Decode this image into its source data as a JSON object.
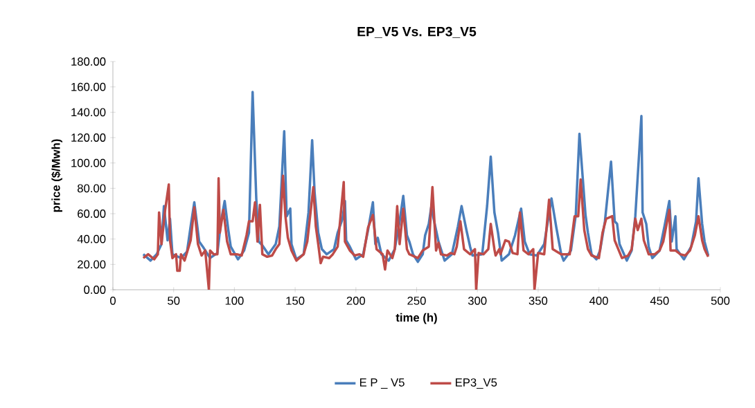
{
  "chart_data": {
    "type": "line",
    "title": "EP_V5 Vs. EP3_V5",
    "xlabel": "time (h)",
    "ylabel": "price ($/Mwh)",
    "xlim": [
      0,
      500
    ],
    "xticks": [
      0,
      50,
      100,
      150,
      200,
      250,
      300,
      350,
      400,
      450,
      500
    ],
    "ylim": [
      0,
      180
    ],
    "yticks": [
      {
        "value": 0,
        "label": "0.00"
      },
      {
        "value": 20,
        "label": "20.00"
      },
      {
        "value": 40,
        "label": "40.00"
      },
      {
        "value": 60,
        "label": "60.00"
      },
      {
        "value": 80,
        "label": "80.00"
      },
      {
        "value": 100,
        "label": "100.00"
      },
      {
        "value": 120,
        "label": "120.00"
      },
      {
        "value": 140,
        "label": "140.00"
      },
      {
        "value": 160,
        "label": "160.00"
      },
      {
        "value": 180,
        "label": "180.00"
      }
    ],
    "grid": false,
    "legend": "bottom",
    "marker": "none",
    "line_style": "solid",
    "series": [
      {
        "name": "E P _ V5",
        "color": "#4a7ebb",
        "x": [
          25,
          31,
          36,
          40,
          42,
          45,
          47,
          49,
          56,
          61,
          64,
          67,
          71,
          74,
          80,
          86,
          89,
          92,
          95,
          97,
          103,
          108,
          112,
          115,
          118,
          120,
          123,
          128,
          134,
          137,
          141,
          143,
          146,
          147,
          151,
          157,
          161,
          164,
          166,
          169,
          172,
          176,
          182,
          185,
          189,
          191,
          192,
          195,
          200,
          206,
          210,
          214,
          216,
          218,
          221,
          227,
          232,
          236,
          239,
          242,
          244,
          247,
          251,
          255,
          257,
          260,
          262,
          268,
          273,
          279,
          284,
          287,
          291,
          294,
          296,
          304,
          308,
          311,
          314,
          317,
          320,
          326,
          331,
          336,
          339,
          343,
          349,
          355,
          361,
          365,
          369,
          371,
          377,
          381,
          384,
          389,
          391,
          394,
          398,
          401,
          405,
          410,
          413,
          415,
          417,
          423,
          427,
          430,
          435,
          436,
          439,
          441,
          444,
          450,
          454,
          458,
          460,
          463,
          464,
          470,
          476,
          480,
          482,
          485,
          487,
          490
        ],
        "values": [
          28,
          23,
          28,
          36,
          66,
          39,
          56,
          28,
          25,
          30,
          50,
          69,
          38,
          34,
          25,
          29,
          54,
          70,
          47,
          34,
          24,
          31,
          45,
          156,
          72,
          38,
          35,
          28,
          36,
          50,
          125,
          58,
          64,
          36,
          24,
          28,
          61,
          118,
          77,
          45,
          32,
          28,
          32,
          45,
          56,
          70,
          39,
          34,
          24,
          28,
          47,
          69,
          36,
          41,
          28,
          23,
          32,
          54,
          74,
          43,
          38,
          28,
          22,
          28,
          43,
          52,
          65,
          38,
          23,
          28,
          50,
          66,
          47,
          34,
          27,
          28,
          66,
          105,
          61,
          45,
          23,
          28,
          43,
          64,
          38,
          28,
          27,
          36,
          72,
          49,
          28,
          23,
          31,
          59,
          123,
          59,
          45,
          28,
          24,
          31,
          54,
          101,
          54,
          52,
          36,
          23,
          31,
          58,
          137,
          61,
          52,
          34,
          25,
          31,
          50,
          70,
          38,
          58,
          32,
          24,
          34,
          54,
          88,
          52,
          38,
          27
        ]
      },
      {
        "name": "EP3_V5",
        "color": "#be4b48",
        "x": [
          25,
          29,
          34,
          37,
          38,
          40,
          43,
          46,
          47,
          49,
          52,
          53,
          55,
          56,
          59,
          64,
          67,
          70,
          73,
          76,
          79,
          80,
          83,
          86,
          87,
          88,
          91,
          94,
          97,
          102,
          106,
          110,
          112,
          115,
          117,
          119,
          121,
          123,
          127,
          131,
          134,
          137,
          140,
          142,
          144,
          147,
          151,
          157,
          160,
          165,
          167,
          169,
          171,
          173,
          178,
          181,
          185,
          187,
          190,
          191,
          195,
          199,
          203,
          206,
          210,
          214,
          217,
          222,
          224,
          226,
          230,
          232,
          234,
          236,
          239,
          242,
          244,
          251,
          255,
          260,
          263,
          266,
          268,
          270,
          275,
          278,
          281,
          283,
          286,
          289,
          294,
          298,
          299,
          301,
          305,
          309,
          311,
          314,
          315,
          318,
          319,
          323,
          326,
          329,
          333,
          335,
          338,
          342,
          346,
          347,
          350,
          355,
          359,
          362,
          369,
          372,
          376,
          380,
          383,
          385,
          388,
          391,
          394,
          400,
          403,
          406,
          411,
          413,
          416,
          419,
          424,
          427,
          430,
          432,
          435,
          437,
          441,
          446,
          450,
          453,
          458,
          459,
          463,
          467,
          471,
          475,
          479,
          482,
          485,
          487,
          490
        ],
        "values": [
          25,
          28,
          24,
          28,
          61,
          36,
          63,
          83,
          39,
          25,
          28,
          15,
          15,
          28,
          23,
          39,
          65,
          36,
          27,
          31,
          0,
          31,
          28,
          28,
          88,
          45,
          63,
          38,
          28,
          28,
          27,
          43,
          54,
          54,
          69,
          38,
          67,
          28,
          26,
          27,
          32,
          36,
          90,
          58,
          41,
          31,
          23,
          28,
          38,
          81,
          50,
          36,
          21,
          26,
          25,
          28,
          34,
          54,
          85,
          38,
          31,
          27,
          28,
          26,
          49,
          59,
          32,
          28,
          16,
          31,
          25,
          32,
          66,
          36,
          64,
          32,
          28,
          25,
          31,
          34,
          81,
          31,
          37,
          28,
          27,
          29,
          28,
          34,
          54,
          32,
          28,
          32,
          0,
          29,
          28,
          32,
          52,
          32,
          27,
          32,
          28,
          39,
          38,
          29,
          28,
          61,
          31,
          28,
          32,
          0,
          29,
          28,
          71,
          32,
          28,
          28,
          28,
          58,
          58,
          87,
          47,
          32,
          27,
          25,
          45,
          56,
          58,
          39,
          32,
          25,
          27,
          32,
          56,
          47,
          56,
          39,
          28,
          28,
          31,
          38,
          63,
          31,
          31,
          28,
          27,
          31,
          43,
          58,
          39,
          32,
          26
        ]
      }
    ]
  }
}
